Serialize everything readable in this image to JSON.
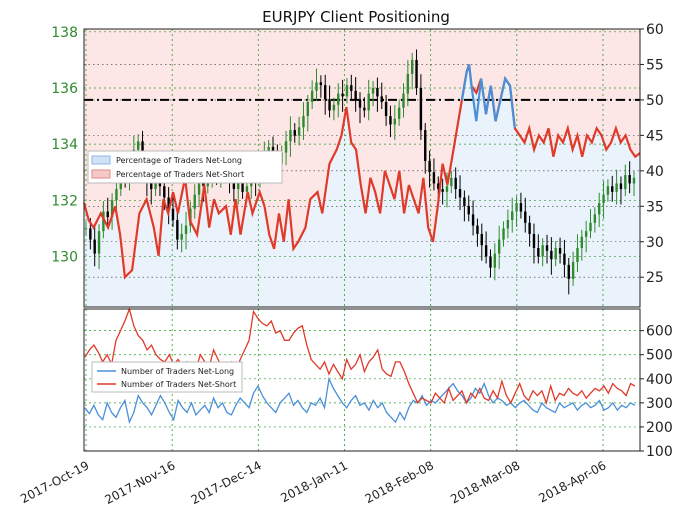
{
  "chart_data": [
    {
      "type": "candlestick",
      "title": "EURJPY Client Positioning",
      "x_tick_labels": [
        "2017-Oct-19",
        "2017-Nov-16",
        "2017-Dec-14",
        "2018-Jan-11",
        "2018-Feb-08",
        "2018-Mar-08",
        "2018-Apr-06"
      ],
      "y_left": {
        "ticks": [
          "130",
          "132",
          "134",
          "136",
          "138"
        ],
        "range": [
          128.2,
          138.1
        ],
        "tick_color": "#2e8b2e"
      },
      "y_right": {
        "ticks": [
          "25",
          "30",
          "35",
          "40",
          "45",
          "50",
          "55",
          "60"
        ],
        "range": [
          20.8,
          60
        ]
      },
      "reference_line": {
        "axis": "right",
        "value": 50,
        "style": "dash-dot black"
      },
      "legend": [
        "Percentage of Traders Net-Long",
        "Percentage of Traders Net-Short"
      ],
      "legend_colors": {
        "net_long": "#4a90d9",
        "net_short": "#e03a2a"
      },
      "series": [
        {
          "name": "Percentage of Traders Net-Short",
          "axis": "right",
          "points": [
            [
              0,
              35.5
            ],
            [
              4,
              33
            ],
            [
              8,
              32
            ],
            [
              14,
              34
            ],
            [
              20,
              32
            ],
            [
              26,
              35
            ],
            [
              30,
              31
            ],
            [
              34,
              25
            ],
            [
              40,
              26
            ],
            [
              46,
              34
            ],
            [
              52,
              36
            ],
            [
              58,
              32
            ],
            [
              62,
              28
            ],
            [
              66,
              36
            ],
            [
              70,
              34
            ],
            [
              74,
              37
            ],
            [
              78,
              34
            ],
            [
              84,
              39
            ],
            [
              88,
              33
            ],
            [
              94,
              31
            ],
            [
              100,
              38
            ],
            [
              104,
              32
            ],
            [
              108,
              36
            ],
            [
              112,
              34
            ],
            [
              118,
              35
            ],
            [
              122,
              31
            ],
            [
              126,
              36
            ],
            [
              130,
              31
            ],
            [
              136,
              37
            ],
            [
              140,
              34
            ],
            [
              146,
              37
            ],
            [
              150,
              35
            ],
            [
              154,
              31
            ],
            [
              158,
              29
            ],
            [
              162,
              34
            ],
            [
              166,
              30
            ],
            [
              170,
              36
            ],
            [
              174,
              29
            ],
            [
              178,
              30
            ],
            [
              184,
              32
            ],
            [
              188,
              36
            ],
            [
              194,
              37
            ],
            [
              198,
              34
            ],
            [
              204,
              41
            ],
            [
              210,
              43
            ],
            [
              214,
              45
            ],
            [
              218,
              49
            ],
            [
              222,
              44
            ],
            [
              226,
              43
            ],
            [
              230,
              38
            ],
            [
              234,
              34
            ],
            [
              238,
              39
            ],
            [
              242,
              37
            ],
            [
              246,
              34
            ],
            [
              250,
              40
            ],
            [
              254,
              38
            ],
            [
              258,
              36
            ],
            [
              262,
              40
            ],
            [
              266,
              34
            ],
            [
              270,
              38
            ],
            [
              274,
              36
            ],
            [
              278,
              34
            ],
            [
              282,
              39
            ],
            [
              286,
              32
            ],
            [
              290,
              30
            ],
            [
              294,
              35
            ],
            [
              298,
              41
            ],
            [
              302,
              38
            ],
            [
              306,
              42
            ],
            [
              310,
              46
            ],
            [
              314,
              50
            ],
            [
              318,
              54
            ],
            [
              320,
              55
            ],
            [
              322,
              52
            ],
            [
              326,
              51
            ],
            [
              330,
              53
            ],
            [
              334,
              48
            ],
            [
              338,
              52
            ],
            [
              342,
              47
            ],
            [
              346,
              50
            ],
            [
              350,
              53
            ],
            [
              354,
              52
            ],
            [
              358,
              46
            ],
            [
              362,
              45
            ],
            [
              366,
              44
            ],
            [
              370,
              46
            ],
            [
              374,
              43
            ],
            [
              378,
              45
            ],
            [
              382,
              44
            ],
            [
              386,
              46
            ],
            [
              390,
              42
            ],
            [
              394,
              45
            ],
            [
              398,
              44
            ],
            [
              402,
              46
            ],
            [
              406,
              43
            ],
            [
              410,
              45
            ],
            [
              414,
              42
            ],
            [
              418,
              45
            ],
            [
              422,
              44
            ],
            [
              426,
              46
            ],
            [
              430,
              45
            ],
            [
              434,
              43
            ],
            [
              438,
              44
            ],
            [
              442,
              46
            ],
            [
              446,
              44
            ],
            [
              450,
              45
            ],
            [
              454,
              43
            ],
            [
              458,
              42
            ],
            [
              462,
              42.5
            ]
          ]
        },
        {
          "name": "Percentage of Traders Net-Long",
          "axis": "right",
          "points": [
            [
              314,
              50
            ],
            [
              318,
              54
            ],
            [
              320,
              55
            ],
            [
              322,
              52
            ],
            [
              326,
              47
            ],
            [
              330,
              53
            ],
            [
              334,
              48
            ],
            [
              338,
              52
            ],
            [
              342,
              47
            ],
            [
              346,
              50
            ],
            [
              350,
              53
            ],
            [
              354,
              52
            ],
            [
              358,
              46
            ]
          ]
        }
      ],
      "candles_close_left_axis": [
        131.0,
        130.6,
        130.1,
        130.9,
        131.6,
        131.4,
        132.0,
        132.4,
        133.0,
        132.8,
        133.4,
        133.8,
        134.1,
        133.2,
        132.6,
        132.4,
        132.9,
        132.5,
        132.1,
        131.7,
        131.3,
        130.6,
        130.8,
        131.1,
        131.7,
        132.2,
        132.6,
        132.5,
        132.8,
        133.2,
        133.0,
        133.2,
        132.9,
        132.6,
        132.4,
        132.7,
        132.3,
        132.5,
        132.9,
        132.7,
        133.3,
        133.6,
        133.9,
        133.5,
        133.3,
        133.7,
        134.1,
        134.5,
        134.3,
        134.6,
        135.0,
        135.5,
        135.9,
        136.2,
        136.1,
        135.6,
        135.2,
        135.4,
        135.8,
        135.7,
        136.1,
        135.9,
        135.6,
        135.3,
        135.2,
        135.8,
        136.0,
        135.7,
        135.5,
        135.0,
        134.7,
        134.9,
        135.3,
        135.8,
        136.5,
        137.0,
        136.0,
        134.5,
        133.4,
        133.0,
        132.6,
        132.4,
        132.3,
        132.5,
        132.8,
        132.4,
        132.1,
        131.8,
        131.5,
        131.1,
        130.8,
        130.4,
        130.0,
        129.6,
        130.1,
        130.6,
        131.0,
        131.3,
        131.6,
        131.9,
        131.6,
        131.2,
        130.8,
        130.3,
        130.0,
        130.4,
        130.2,
        129.9,
        130.3,
        130.1,
        129.7,
        129.2,
        129.8,
        130.3,
        130.7,
        130.9,
        131.2,
        131.5,
        131.9,
        132.2,
        132.5,
        132.3,
        132.6,
        132.4,
        132.9,
        132.6,
        132.8
      ],
      "secondary": {
        "type": "line",
        "y_ticks": [
          "100",
          "200",
          "300",
          "400",
          "500",
          "600"
        ],
        "y_range": [
          100,
          690
        ],
        "legend": [
          "Number of Traders Net-Long",
          "Number of Traders Net-Short"
        ],
        "series": [
          {
            "name": "Number of Traders Net-Long",
            "color": "#4a90d9",
            "values": [
              280,
              255,
              290,
              250,
              230,
              300,
              260,
              240,
              280,
              310,
              220,
              260,
              330,
              300,
              280,
              250,
              290,
              330,
              300,
              260,
              230,
              310,
              280,
              260,
              300,
              250,
              270,
              290,
              260,
              320,
              280,
              300,
              260,
              250,
              290,
              320,
              300,
              280,
              340,
              370,
              330,
              300,
              280,
              260,
              300,
              320,
              340,
              290,
              310,
              280,
              260,
              300,
              290,
              320,
              280,
              400,
              360,
              330,
              300,
              280,
              310,
              330,
              290,
              300,
              270,
              310,
              280,
              300,
              260,
              240,
              220,
              260,
              230,
              280,
              310,
              300,
              330,
              290,
              310,
              300,
              320,
              340,
              360,
              380,
              350,
              330,
              300,
              320,
              360,
              340,
              380,
              330,
              300,
              320,
              310,
              290,
              300,
              280,
              300,
              310,
              290,
              270,
              260,
              300,
              280,
              270,
              260,
              300,
              280,
              290,
              300,
              270,
              290,
              300,
              280,
              290,
              310,
              270,
              280,
              300,
              270,
              290,
              280,
              300,
              290
            ]
          },
          {
            "name": "Number of Traders Net-Short",
            "color": "#e03a2a",
            "values": [
              490,
              520,
              540,
              510,
              470,
              500,
              460,
              560,
              600,
              640,
              690,
              620,
              580,
              560,
              520,
              540,
              500,
              480,
              470,
              500,
              460,
              480,
              450,
              470,
              420,
              440,
              500,
              470,
              450,
              520,
              480,
              440,
              450,
              470,
              430,
              480,
              520,
              560,
              680,
              650,
              630,
              620,
              640,
              590,
              600,
              560,
              560,
              590,
              610,
              620,
              540,
              480,
              460,
              440,
              470,
              420,
              460,
              430,
              400,
              480,
              440,
              460,
              500,
              430,
              470,
              490,
              520,
              440,
              420,
              410,
              470,
              470,
              430,
              380,
              340,
              300,
              320,
              310,
              300,
              340,
              320,
              300,
              360,
              310,
              330,
              350,
              300,
              340,
              320,
              360,
              320,
              310,
              350,
              320,
              390,
              330,
              300,
              340,
              380,
              330,
              310,
              350,
              330,
              350,
              300,
              370,
              310,
              340,
              330,
              360,
              340,
              330,
              350,
              320,
              340,
              360,
              350,
              370,
              340,
              380,
              360,
              350,
              330,
              380,
              370
            ]
          }
        ]
      }
    }
  ]
}
